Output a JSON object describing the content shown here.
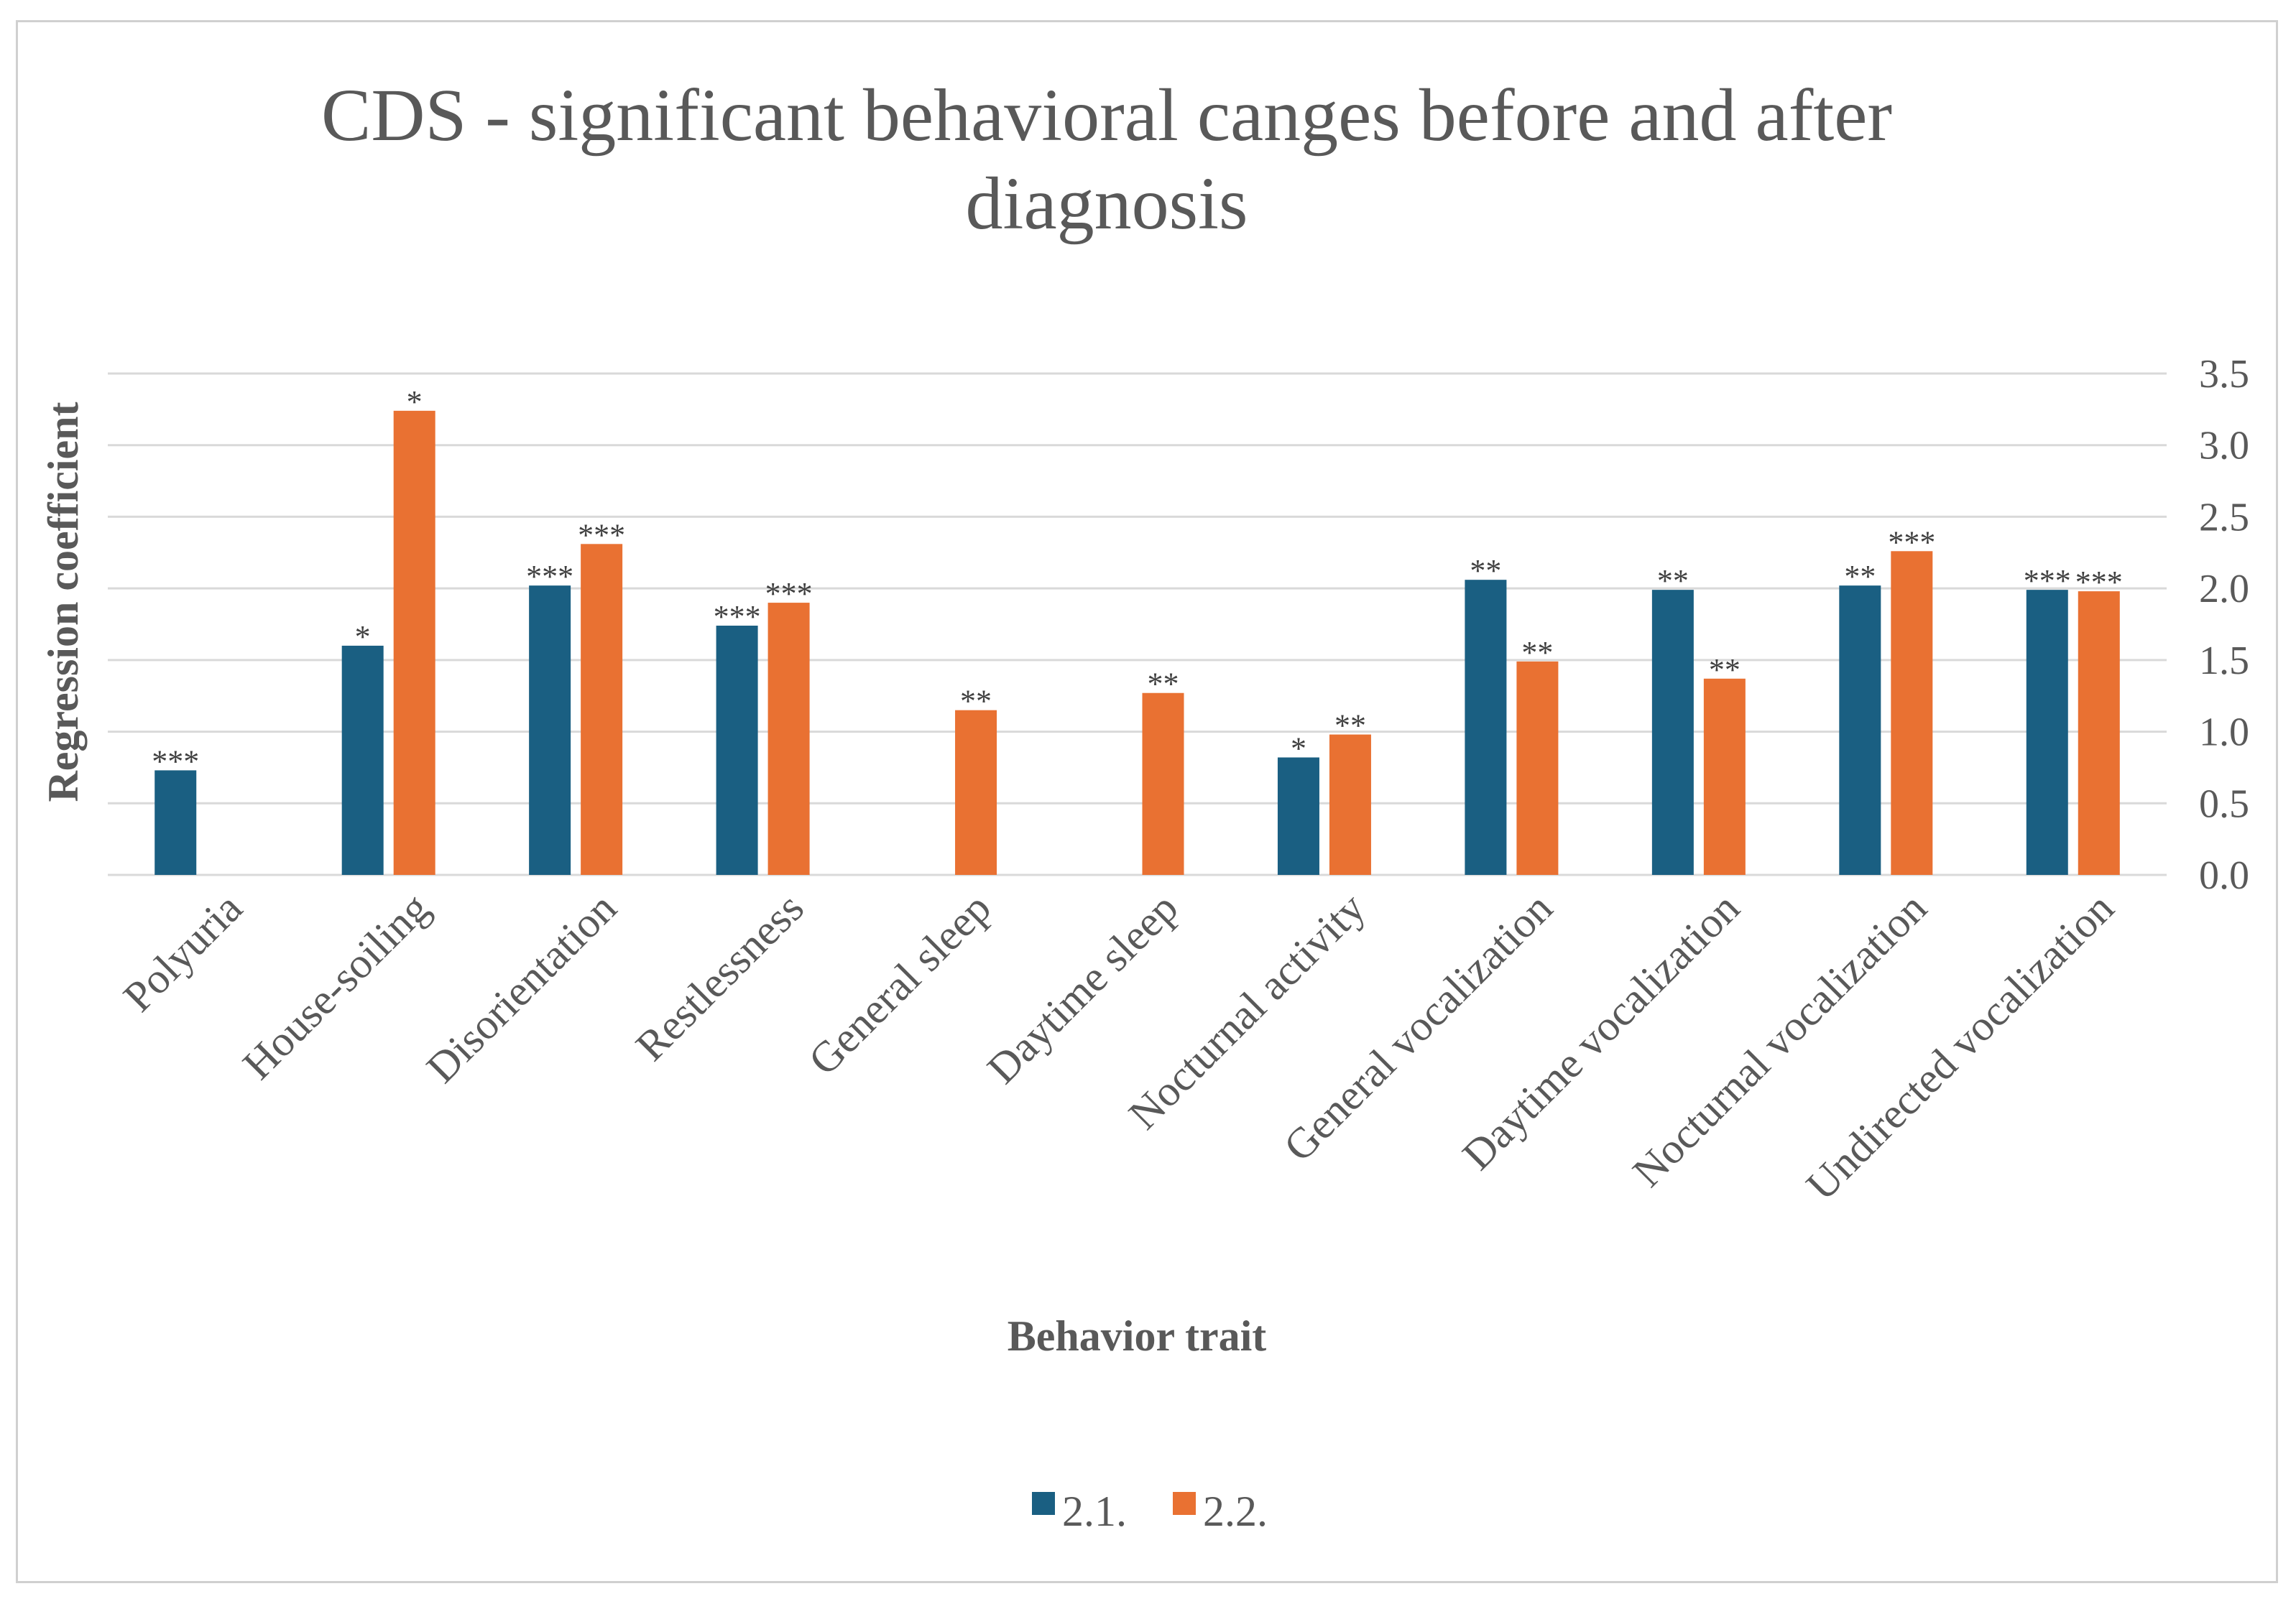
{
  "chart_data": {
    "type": "bar",
    "title_lines": [
      "CDS - significant behavioral canges before and after",
      "diagnosis"
    ],
    "xlabel": "Behavior trait",
    "ylabel": "Regression coefficient",
    "ylim": [
      0,
      3.5
    ],
    "ytick_step": 0.5,
    "y_axis_side": "right",
    "grid": true,
    "legend_position": "bottom",
    "categories": [
      "Polyuria",
      "House-soiling",
      "Disorientation",
      "Restlessness",
      "General sleep",
      "Daytime sleep",
      "Nocturnal activity",
      "General vocalization",
      "Daytime vocalization",
      "Nocturnal vocalization",
      "Undirected vocalization"
    ],
    "series": [
      {
        "name": "2.1.",
        "color": "#1a5f82",
        "values": [
          0.73,
          1.6,
          2.02,
          1.74,
          null,
          null,
          0.82,
          2.06,
          1.99,
          2.02,
          1.99
        ],
        "significance": [
          "***",
          "*",
          "***",
          "***",
          "",
          "",
          "*",
          "**",
          "**",
          "**",
          "***"
        ]
      },
      {
        "name": "2.2.",
        "color": "#e97132",
        "values": [
          null,
          3.24,
          2.31,
          1.9,
          1.15,
          1.27,
          0.98,
          1.49,
          1.37,
          2.26,
          1.98
        ],
        "significance": [
          "",
          "*",
          "***",
          "***",
          "**",
          "**",
          "**",
          "**",
          "**",
          "***",
          "***"
        ]
      }
    ]
  }
}
